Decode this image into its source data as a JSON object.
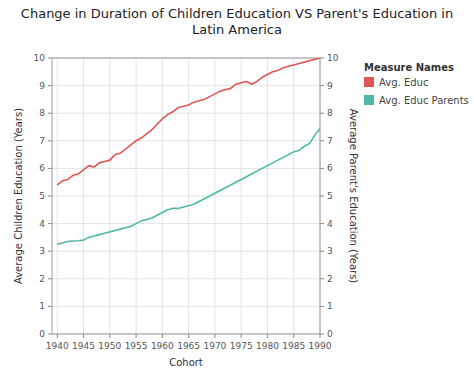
{
  "chart_data": {
    "type": "line",
    "title": "Change in Duration of Children Education VS Parent's Education in Latin America",
    "x_label": "Cohort",
    "y_label": "Average Children Education (Years)",
    "y2_label": "Average Parent's Education (Years)",
    "legend_title": "Measure Names",
    "legend": "right",
    "grid": true,
    "x": [
      1940,
      1941,
      1942,
      1943,
      1944,
      1945,
      1946,
      1947,
      1948,
      1949,
      1950,
      1951,
      1952,
      1953,
      1954,
      1955,
      1956,
      1957,
      1958,
      1959,
      1960,
      1961,
      1962,
      1963,
      1964,
      1965,
      1966,
      1967,
      1968,
      1969,
      1970,
      1971,
      1972,
      1973,
      1974,
      1975,
      1976,
      1977,
      1978,
      1979,
      1980,
      1981,
      1982,
      1983,
      1984,
      1985,
      1986,
      1987,
      1988,
      1989,
      1990
    ],
    "series": [
      {
        "name": "Avg. Educ",
        "color": "#e05555",
        "values": [
          5.4,
          5.55,
          5.6,
          5.75,
          5.8,
          5.95,
          6.1,
          6.05,
          6.2,
          6.25,
          6.3,
          6.5,
          6.55,
          6.7,
          6.85,
          7.0,
          7.1,
          7.25,
          7.4,
          7.6,
          7.8,
          7.95,
          8.05,
          8.2,
          8.25,
          8.3,
          8.4,
          8.45,
          8.5,
          8.6,
          8.7,
          8.8,
          8.85,
          8.9,
          9.05,
          9.1,
          9.15,
          9.05,
          9.15,
          9.3,
          9.4,
          9.5,
          9.55,
          9.65,
          9.7,
          9.75,
          9.8,
          9.85,
          9.9,
          9.95,
          10.0
        ]
      },
      {
        "name": "Avg. Educ Parents",
        "color": "#4db8a8",
        "axis": "y2",
        "values": [
          3.25,
          3.3,
          3.35,
          3.37,
          3.38,
          3.4,
          3.5,
          3.55,
          3.6,
          3.65,
          3.7,
          3.75,
          3.8,
          3.85,
          3.9,
          4.0,
          4.1,
          4.15,
          4.2,
          4.3,
          4.4,
          4.5,
          4.55,
          4.55,
          4.6,
          4.65,
          4.7,
          4.8,
          4.9,
          5.0,
          5.1,
          5.2,
          5.3,
          5.4,
          5.5,
          5.6,
          5.7,
          5.8,
          5.9,
          6.0,
          6.1,
          6.2,
          6.3,
          6.4,
          6.5,
          6.6,
          6.65,
          6.8,
          6.9,
          7.2,
          7.45
        ]
      }
    ],
    "xlim": [
      1939,
      1990
    ],
    "xticks": [
      1940,
      1945,
      1950,
      1955,
      1960,
      1965,
      1970,
      1975,
      1980,
      1985,
      1990
    ],
    "ylim": [
      0,
      10
    ],
    "yticks": [
      0,
      1,
      2,
      3,
      4,
      5,
      6,
      7,
      8,
      9,
      10
    ],
    "y2lim": [
      0,
      10
    ],
    "y2ticks": [
      0,
      1,
      2,
      3,
      4,
      5,
      6,
      7,
      8,
      9,
      10
    ]
  }
}
